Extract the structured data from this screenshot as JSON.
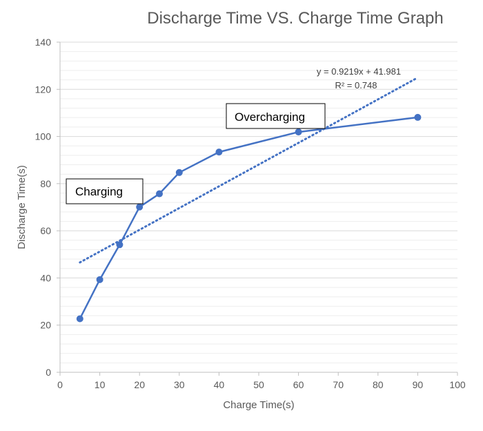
{
  "chart_data": {
    "type": "scatter",
    "title": "Discharge Time VS. Charge Time Graph",
    "xlabel": "Charge Time(s)",
    "ylabel": "Discharge Time(s)",
    "xlim": [
      0,
      100
    ],
    "ylim": [
      0,
      140
    ],
    "x_ticks": [
      0,
      10,
      20,
      30,
      40,
      50,
      60,
      70,
      80,
      90,
      100
    ],
    "y_ticks": [
      0,
      20,
      40,
      60,
      80,
      100,
      120,
      140
    ],
    "grid": "horizontal major and minor",
    "series": [
      {
        "x": [
          5,
          10,
          15,
          20,
          25,
          30,
          40,
          60,
          90
        ],
        "y": [
          22.7,
          39.3,
          54.1,
          70.1,
          75.7,
          84.7,
          93.4,
          101.9,
          108.1
        ],
        "color": "#4472C4",
        "style": "line-with-markers"
      }
    ],
    "trendline": {
      "type": "linear",
      "slope": 0.9219,
      "intercept": 41.981,
      "x_range": [
        5,
        90
      ],
      "color": "#4472C4",
      "style": "dotted",
      "equation_label": "y = 0.9219x + 41.981",
      "r2_label": "R² = 0.748"
    },
    "annotations": [
      {
        "text": "Charging",
        "near_x": 5,
        "near_y": 77
      },
      {
        "text": "Overcharging",
        "near_x": 52,
        "near_y": 108
      }
    ]
  }
}
